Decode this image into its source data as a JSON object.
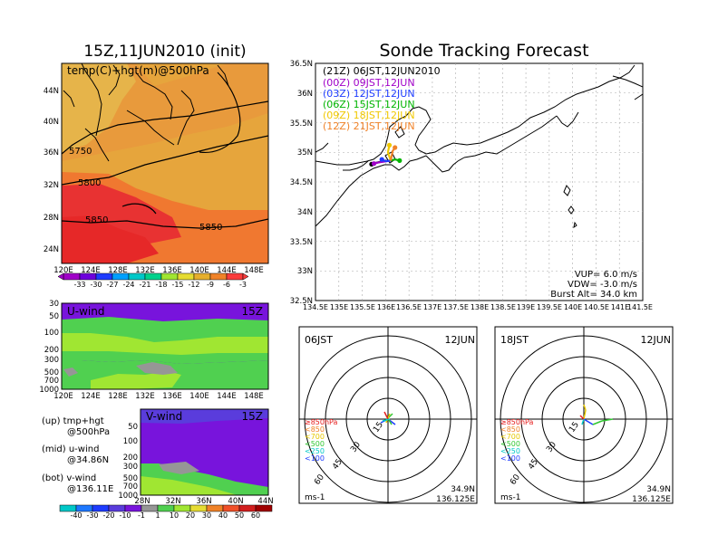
{
  "left_panel": {
    "title": "15Z,11JUN2010 (init)",
    "map_label": "temp(C)+hgt(m)@500hPa",
    "lat_ticks": [
      "44N",
      "40N",
      "36N",
      "32N",
      "28N",
      "24N"
    ],
    "lon_ticks": [
      "120E",
      "124E",
      "128E",
      "132E",
      "136E",
      "140E",
      "144E",
      "148E"
    ],
    "contour_labels": [
      "5750",
      "5800",
      "5850",
      "5850"
    ],
    "temp_colorbar": [
      "-33",
      "-30",
      "-27",
      "-24",
      "-21",
      "-18",
      "-15",
      "-12",
      "-9",
      "-6",
      "-3"
    ],
    "temp_colors": [
      "#a000c8",
      "#6e00dc",
      "#1e3cff",
      "#00a0ff",
      "#00c8c8",
      "#00d28c",
      "#a0e632",
      "#e6dc32",
      "#e6af2d",
      "#f08228",
      "#fa3c3c"
    ]
  },
  "u_wind": {
    "label": "U-wind",
    "time": "15Z",
    "p_ticks": [
      "30",
      "50",
      "100",
      "200",
      "300",
      "500",
      "700",
      "1000"
    ],
    "lon_ticks": [
      "120E",
      "124E",
      "128E",
      "132E",
      "136E",
      "140E",
      "144E",
      "148E"
    ]
  },
  "v_wind": {
    "label": "V-wind",
    "time": "15Z",
    "p_ticks": [
      "50",
      "100",
      "200",
      "300",
      "500",
      "700",
      "1000"
    ],
    "lat_ticks": [
      "28N",
      "32N",
      "36N",
      "40N",
      "44N"
    ]
  },
  "notes": {
    "up1": "(up)  tmp+hgt",
    "up2": "@500hPa",
    "mid1": "(mid)  u-wind",
    "mid2": "@34.86N",
    "bot1": "(bot)  v-wind",
    "bot2": "@136.11E"
  },
  "wind_colorbar": {
    "labels": [
      "-40",
      "-30",
      "-20",
      "-10",
      "-1",
      "1",
      "10",
      "20",
      "30",
      "40",
      "50",
      "60"
    ],
    "colors": [
      "#00c8c8",
      "#1e78ff",
      "#1e3cff",
      "#5a3cdc",
      "#7814dc",
      "#969696",
      "#50d050",
      "#a0e632",
      "#e6dc32",
      "#f08228",
      "#f05028",
      "#d21e1e",
      "#a00000"
    ]
  },
  "right_panel": {
    "title": "Sonde Tracking Forecast",
    "lat_ticks": [
      "36.5N",
      "36N",
      "35.5N",
      "35N",
      "34.5N",
      "34N",
      "33.5N",
      "33N",
      "32.5N"
    ],
    "lon_ticks": [
      "134.5E",
      "135E",
      "135.5E",
      "136E",
      "136.5E",
      "137E",
      "137.5E",
      "138E",
      "138.5E",
      "139E",
      "139.5E",
      "140E",
      "140.5E",
      "141E",
      "141.5E"
    ],
    "legend": [
      {
        "text": "(21Z)  06JST,12JUN2010",
        "color": "#000000"
      },
      {
        "text": "(00Z)  09JST,12JUN",
        "color": "#a000c8"
      },
      {
        "text": "(03Z)  12JST,12JUN",
        "color": "#1e3cff"
      },
      {
        "text": "(06Z)  15JST,12JUN",
        "color": "#00b400"
      },
      {
        "text": "(09Z)  18JST,12JUN",
        "color": "#f0c800"
      },
      {
        "text": "(12Z)  21JST,12JUN",
        "color": "#f08228"
      }
    ],
    "params": [
      "VUP=  6.0  m/s",
      "VDW= -3.0  m/s",
      "Burst Alt=  34.0  km"
    ]
  },
  "polar1": {
    "time": "06JST",
    "date": "12JUN",
    "rings": [
      "15",
      "30",
      "45",
      "60"
    ],
    "units": "ms-1",
    "coord1": "34.9N",
    "coord2": "136.125E"
  },
  "polar2": {
    "time": "18JST",
    "date": "12JUN",
    "rings": [
      "15",
      "30",
      "45",
      "60"
    ],
    "units": "ms-1",
    "coord1": "34.9N",
    "coord2": "136.125E"
  },
  "level_legend": [
    {
      "text": "≥850hPa",
      "color": "#e61e1e"
    },
    {
      "text": "<850",
      "color": "#f08228"
    },
    {
      "text": "<700",
      "color": "#e6c800"
    },
    {
      "text": "<500",
      "color": "#32c832"
    },
    {
      "text": "<250",
      "color": "#00c8c8"
    },
    {
      "text": "<100",
      "color": "#1e3cff"
    }
  ],
  "chart_data": [
    {
      "type": "heatmap",
      "title": "15Z,11JUN2010 (init)",
      "subtitle": "temp(C)+hgt(m)@500hPa",
      "xlim": [
        "120E",
        "150E"
      ],
      "ylim": [
        "22N",
        "46N"
      ],
      "contours": [
        5750,
        5800,
        5850
      ],
      "colorbar": [
        -33,
        -30,
        -27,
        -24,
        -21,
        -18,
        -15,
        -12,
        -9,
        -6,
        -3
      ]
    },
    {
      "type": "heatmap",
      "title": "U-wind",
      "time": "15Z",
      "xlim": [
        "120E",
        "150E"
      ],
      "ylim_hPa": [
        1000,
        30
      ]
    },
    {
      "type": "heatmap",
      "title": "V-wind",
      "time": "15Z",
      "xlim": [
        "28N",
        "44N"
      ],
      "ylim_hPa": [
        1000,
        30
      ],
      "colorbar": [
        -40,
        -30,
        -20,
        -10,
        -1,
        1,
        10,
        20,
        30,
        40,
        50,
        60
      ]
    },
    {
      "type": "line",
      "title": "Sonde Tracking Forecast",
      "xlim": [
        134.5,
        141.5
      ],
      "ylim": [
        32.5,
        36.5
      ],
      "series": [
        {
          "name": "(21Z)  06JST,12JUN2010",
          "x": [
            136.11,
            135.95,
            135.78,
            135.7
          ],
          "y": [
            34.86,
            34.85,
            34.82,
            34.8
          ]
        },
        {
          "name": "(00Z)  09JST,12JUN",
          "x": [
            136.11,
            135.95,
            135.85,
            135.75
          ],
          "y": [
            34.86,
            34.84,
            34.83,
            34.81
          ]
        },
        {
          "name": "(03Z)  12JST,12JUN",
          "x": [
            136.11,
            136.0,
            135.92
          ],
          "y": [
            34.86,
            34.85,
            34.88
          ]
        },
        {
          "name": "(06Z)  15JST,12JUN",
          "x": [
            136.11,
            136.2,
            136.3
          ],
          "y": [
            34.86,
            34.88,
            34.86
          ]
        },
        {
          "name": "(09Z)  18JST,12JUN",
          "x": [
            136.11,
            136.05,
            136.08
          ],
          "y": [
            34.86,
            35.0,
            35.12
          ]
        },
        {
          "name": "(12Z)  21JST,12JUN",
          "x": [
            136.11,
            136.15,
            136.2
          ],
          "y": [
            34.86,
            35.02,
            35.08
          ]
        }
      ],
      "VUP_ms": 6.0,
      "VDW_ms": -3.0,
      "burst_alt_km": 34.0
    }
  ]
}
